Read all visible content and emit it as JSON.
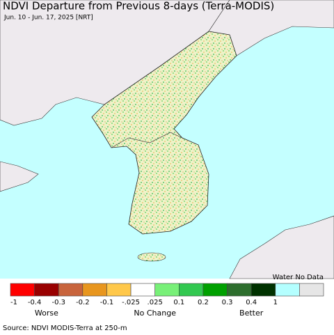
{
  "header": {
    "title": "NDVI Departure from Previous 8-days (Terra-MODIS)",
    "subtitle": "Jun. 10 - Jun. 17, 2025 [NRT]"
  },
  "legend": {
    "colors": [
      "#ff0000",
      "#990000",
      "#c8643c",
      "#e8961e",
      "#ffc84a",
      "#ffffff",
      "#78f078",
      "#32c850",
      "#00a000",
      "#2d6e2d",
      "#003200",
      "#b4ffff",
      "#e6e6e6"
    ],
    "ticks": [
      "-1",
      "-0.4",
      "-0.3",
      "-0.2",
      "-0.1",
      "-.025",
      ".025",
      "0.1",
      "0.2",
      "0.3",
      "0.4",
      "1"
    ],
    "extra_label": "Water No Data",
    "groups": [
      "Worse",
      "No Change",
      "Better"
    ]
  },
  "footer": {
    "source": "Source: NDVI MODIS-Terra at 250-m"
  }
}
